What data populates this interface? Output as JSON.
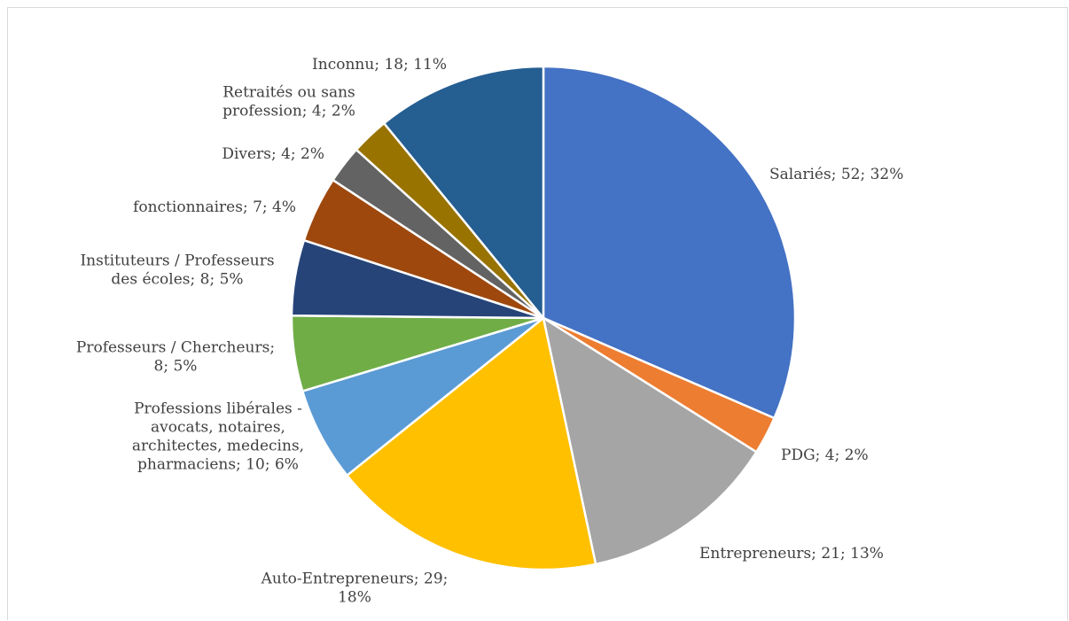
{
  "chart_data": {
    "type": "pie",
    "title": "",
    "start_angle_deg": 0,
    "direction": "clockwise",
    "slices": [
      {
        "name": "Salariés",
        "value": 52,
        "percent": "32%",
        "color": "#4472C4",
        "label_lines": [
          "Salariés; 52; 32%"
        ]
      },
      {
        "name": "PDG",
        "value": 4,
        "percent": "2%",
        "color": "#ED7D31",
        "label_lines": [
          "PDG; 4; 2%"
        ]
      },
      {
        "name": "Entrepreneurs",
        "value": 21,
        "percent": "13%",
        "color": "#A5A5A5",
        "label_lines": [
          "Entrepreneurs; 21; 13%"
        ]
      },
      {
        "name": "Auto-Entrepreneurs",
        "value": 29,
        "percent": "18%",
        "color": "#FFC000",
        "label_lines": [
          "Auto-Entrepreneurs; 29;",
          "18%"
        ]
      },
      {
        "name": "Professions libérales - avocats, notaires, architectes, medecins, pharmaciens",
        "value": 10,
        "percent": "6%",
        "color": "#5B9BD5",
        "label_lines": [
          "Professions libérales -",
          "avocats, notaires,",
          "architectes, medecins,",
          "pharmaciens; 10; 6%"
        ]
      },
      {
        "name": "Professeurs / Chercheurs",
        "value": 8,
        "percent": "5%",
        "color": "#70AD47",
        "label_lines": [
          "Professeurs / Chercheurs;",
          "8; 5%"
        ]
      },
      {
        "name": "Instituteurs / Professeurs des écoles",
        "value": 8,
        "percent": "5%",
        "color": "#264478",
        "label_lines": [
          "Instituteurs / Professeurs",
          "des écoles; 8; 5%"
        ]
      },
      {
        "name": "fonctionnaires",
        "value": 7,
        "percent": "4%",
        "color": "#9E480E",
        "label_lines": [
          "fonctionnaires; 7; 4%"
        ]
      },
      {
        "name": "Divers",
        "value": 4,
        "percent": "2%",
        "color": "#636363",
        "label_lines": [
          "Divers; 4; 2%"
        ]
      },
      {
        "name": "Retraités ou sans profession",
        "value": 4,
        "percent": "2%",
        "color": "#997300",
        "label_lines": [
          "Retraités ou sans",
          "profession; 4; 2%"
        ]
      },
      {
        "name": "Inconnu",
        "value": 18,
        "percent": "11%",
        "color": "#255E91",
        "label_lines": [
          "Inconnu; 18; 11%"
        ]
      }
    ]
  }
}
